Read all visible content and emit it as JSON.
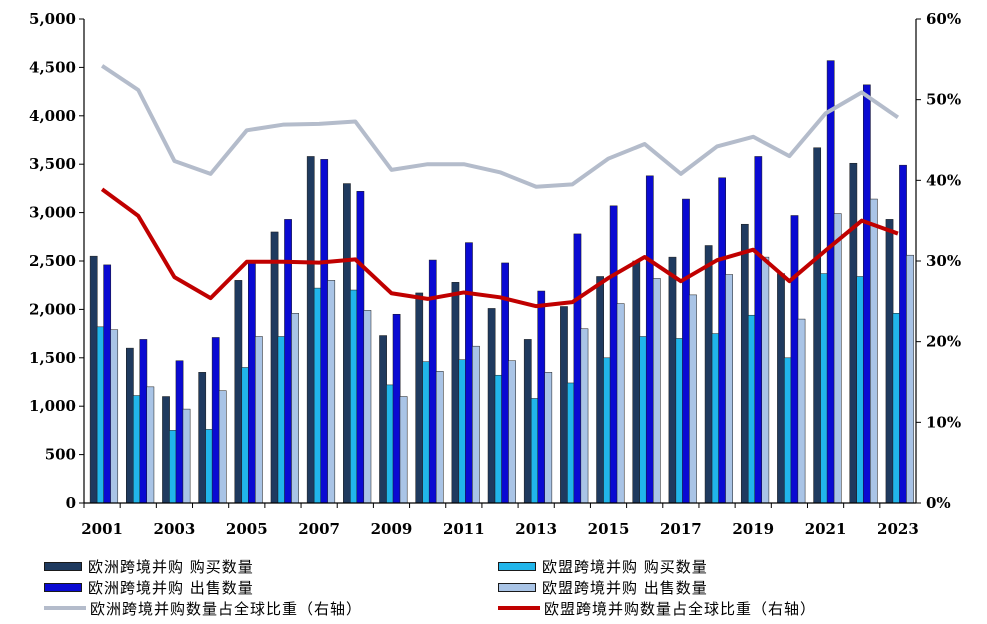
{
  "chart_data": {
    "type": "bar",
    "x": [
      2001,
      2002,
      2003,
      2004,
      2005,
      2006,
      2007,
      2008,
      2009,
      2010,
      2011,
      2012,
      2013,
      2014,
      2015,
      2016,
      2017,
      2018,
      2019,
      2020,
      2021,
      2022,
      2023
    ],
    "x_tick_labels": [
      "2001",
      "2003",
      "2005",
      "2007",
      "2009",
      "2011",
      "2013",
      "2015",
      "2017",
      "2019",
      "2021",
      "2023"
    ],
    "y_left": {
      "min": 0,
      "max": 5000,
      "ticks": [
        "0",
        "500",
        "1,000",
        "1,500",
        "2,000",
        "2,500",
        "3,000",
        "3,500",
        "4,000",
        "4,500",
        "5,000"
      ]
    },
    "y_right": {
      "min": 0,
      "max": 60,
      "ticks": [
        "0%",
        "10%",
        "20%",
        "30%",
        "40%",
        "50%",
        "60%"
      ]
    },
    "grid": false,
    "legend_position": "bottom",
    "series": [
      {
        "name": "欧洲跨境并购 购买数量",
        "type": "bar",
        "axis": "left",
        "color": "#1f3a5f",
        "values": [
          2550,
          1600,
          1100,
          1350,
          2300,
          2800,
          3580,
          3300,
          1730,
          2170,
          2280,
          2010,
          1690,
          2030,
          2340,
          2500,
          2540,
          2660,
          2880,
          2370,
          3670,
          3510,
          2930
        ]
      },
      {
        "name": "欧盟跨境并购 购买数量",
        "type": "bar",
        "axis": "left",
        "color": "#21b5ea",
        "values": [
          1820,
          1110,
          750,
          760,
          1400,
          1720,
          2220,
          2200,
          1220,
          1460,
          1480,
          1320,
          1080,
          1240,
          1500,
          1720,
          1700,
          1750,
          1940,
          1500,
          2370,
          2340,
          1960
        ]
      },
      {
        "name": "欧洲跨境并购 出售数量",
        "type": "bar",
        "axis": "left",
        "color": "#0a0ad2",
        "values": [
          2460,
          1690,
          1470,
          1710,
          2490,
          2930,
          3550,
          3220,
          1950,
          2510,
          2690,
          2480,
          2190,
          2780,
          3070,
          3380,
          3140,
          3360,
          3580,
          2970,
          4570,
          4320,
          3490
        ]
      },
      {
        "name": "欧盟跨境并购 出售数量",
        "type": "bar",
        "axis": "left",
        "color": "#a9c4e6",
        "values": [
          1790,
          1200,
          970,
          1160,
          1720,
          1960,
          2300,
          1990,
          1100,
          1360,
          1620,
          1470,
          1350,
          1800,
          2060,
          2320,
          2150,
          2360,
          2540,
          1900,
          2990,
          3140,
          2560
        ]
      },
      {
        "name": "欧洲跨境并购数量占全球比重（右轴）",
        "type": "line",
        "axis": "right",
        "color": "#b4bccb",
        "values": [
          54.2,
          51.2,
          42.4,
          40.8,
          46.2,
          46.9,
          47.0,
          47.3,
          41.3,
          42.0,
          42.0,
          41.0,
          39.2,
          39.5,
          42.7,
          44.5,
          40.8,
          44.2,
          45.4,
          43.0,
          48.3,
          50.9,
          47.8
        ]
      },
      {
        "name": "欧盟跨境并购数量占全球比重（右轴）",
        "type": "line",
        "axis": "right",
        "color": "#c00000",
        "values": [
          38.9,
          35.6,
          28.0,
          25.4,
          29.9,
          29.9,
          29.8,
          30.2,
          26.0,
          25.3,
          26.1,
          25.5,
          24.4,
          24.9,
          27.9,
          30.5,
          27.5,
          30.1,
          31.4,
          27.5,
          31.3,
          35.0,
          33.4
        ]
      }
    ]
  }
}
